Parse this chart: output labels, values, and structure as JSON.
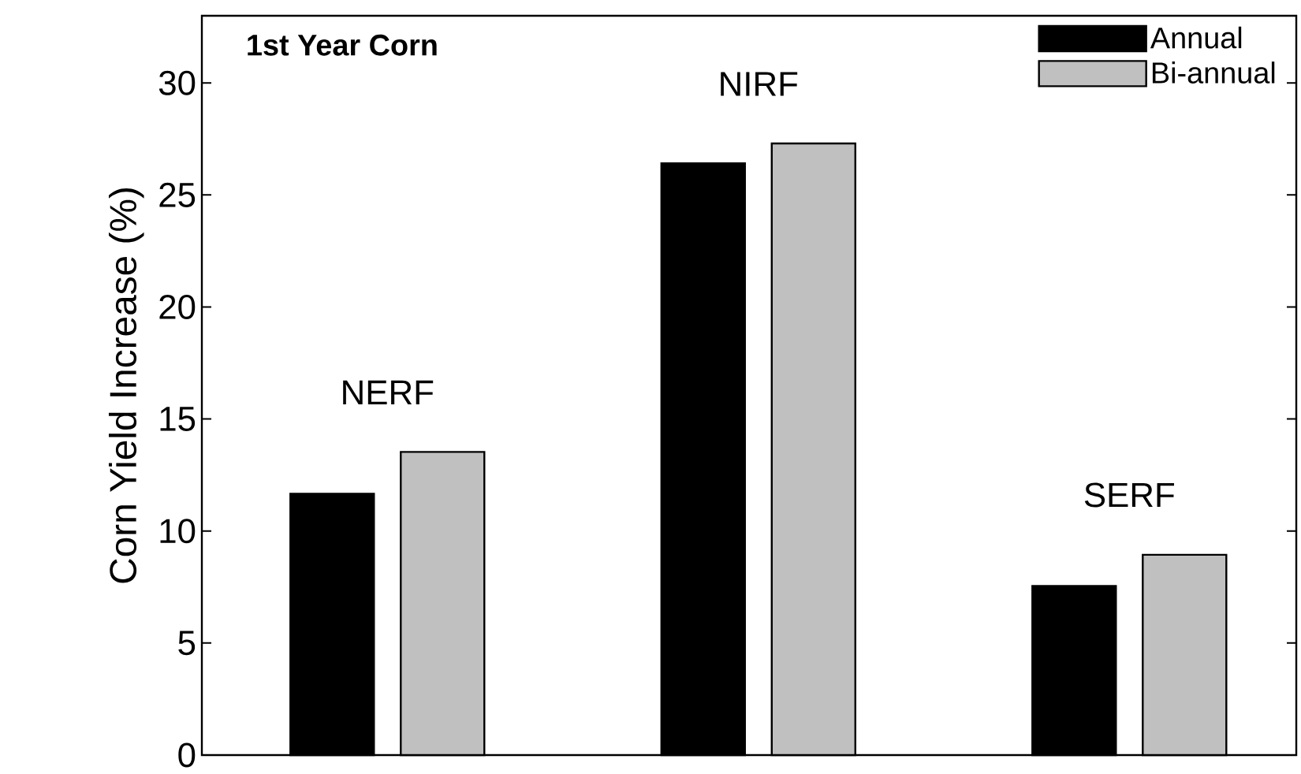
{
  "chart_data": {
    "type": "bar",
    "title": "1st Year Corn",
    "ylabel": "Corn Yield Increase (%)",
    "categories": [
      "NERF",
      "NIRF",
      "SERF"
    ],
    "series": [
      {
        "name": "Annual",
        "color": "#000000",
        "values": [
          11.66,
          26.41,
          7.55
        ]
      },
      {
        "name": "Bi-annual",
        "color": "#c0c0c0",
        "values": [
          13.53,
          27.3,
          8.94
        ]
      }
    ],
    "ylim": [
      0,
      33
    ],
    "yticks": [
      0,
      5,
      10,
      15,
      20,
      25,
      30
    ],
    "legend": "top right"
  }
}
